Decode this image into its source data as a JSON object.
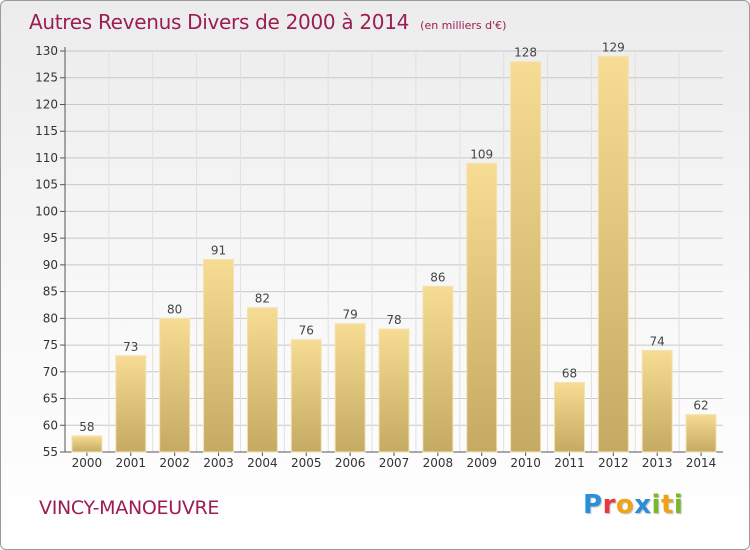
{
  "title": "Autres Revenus Divers de 2000 à 2014",
  "subtitle": "(en milliers d'€)",
  "commune": "VINCY-MANOEUVRE",
  "logo": {
    "text": "Proxiti",
    "letters": [
      {
        "char": "P",
        "color": "#2a8fd6"
      },
      {
        "char": "r",
        "color": "#e8383d"
      },
      {
        "char": "o",
        "color": "#f0a21b"
      },
      {
        "char": "x",
        "color": "#2a8fd6"
      },
      {
        "char": "i",
        "color": "#79b829"
      },
      {
        "char": "t",
        "color": "#f0a21b"
      },
      {
        "char": "i",
        "color": "#79b829"
      }
    ]
  },
  "colors": {
    "title": "#9b1d52",
    "bar_light": "#f7dc93",
    "bar_dark": "#c4aa62",
    "grid": "#c8c8c8"
  },
  "chart_data": {
    "type": "bar",
    "title": "Autres Revenus Divers de 2000 à 2014",
    "subtitle": "(en milliers d'€)",
    "categories": [
      "2000",
      "2001",
      "2002",
      "2003",
      "2004",
      "2005",
      "2006",
      "2007",
      "2008",
      "2009",
      "2010",
      "2011",
      "2012",
      "2013",
      "2014"
    ],
    "values": [
      58,
      73,
      80,
      91,
      82,
      76,
      79,
      78,
      86,
      109,
      128,
      68,
      129,
      74,
      62
    ],
    "ylim": [
      55,
      130
    ],
    "yticks": [
      55,
      60,
      65,
      70,
      75,
      80,
      85,
      90,
      95,
      100,
      105,
      110,
      115,
      120,
      125,
      130
    ],
    "grid": true,
    "data_labels": true
  }
}
